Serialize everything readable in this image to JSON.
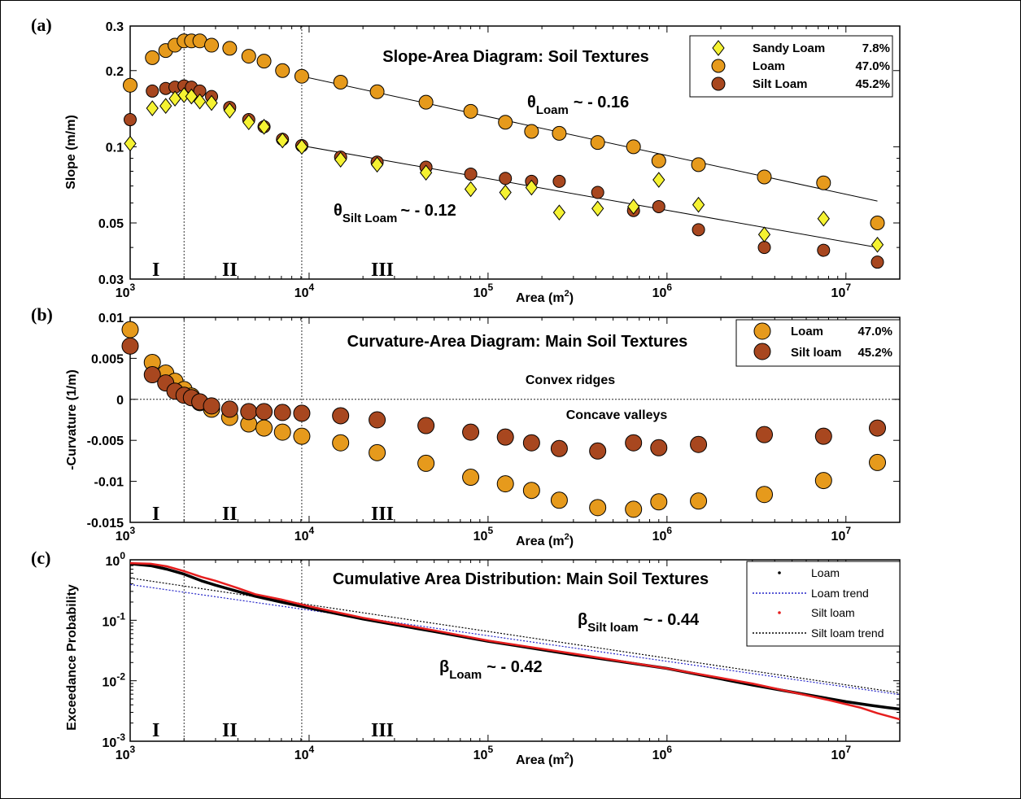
{
  "colors": {
    "sandy_loam": "#f5f232",
    "loam": "#e69a1c",
    "silt_loam": "#a8471f",
    "loam_line": "#000000",
    "loam_trend": "#2424c8",
    "silt_line": "#e61e1e",
    "silt_trend": "#000000"
  },
  "panels": {
    "a": {
      "label": "(a)"
    },
    "b": {
      "label": "(b)"
    },
    "c": {
      "label": "(c)"
    }
  },
  "regions": [
    "I",
    "II",
    "III"
  ],
  "x_tick_labels": [
    "10",
    "10",
    "10",
    "10",
    "10"
  ],
  "x_tick_exponents": [
    "3",
    "4",
    "5",
    "6",
    "7"
  ],
  "x_axis_label": {
    "main": "Area (m",
    "sup": "2",
    "close": ")"
  },
  "chart_data": [
    {
      "type": "scatter",
      "title": "Slope-Area Diagram: Soil Textures",
      "xlabel": "Area (m2)",
      "ylabel": "Slope (m/m)",
      "xscale": "log",
      "yscale": "log",
      "xlim": [
        1000,
        20000000
      ],
      "ylim": [
        0.03,
        0.3
      ],
      "y_tick_labels": [
        "0.03",
        "0.05",
        "0.1",
        "0.2",
        "0.3"
      ],
      "y_ticks": [
        0.03,
        0.05,
        0.1,
        0.2,
        0.3
      ],
      "legend_position": "top-right",
      "legend": [
        {
          "name": "Sandy Loam",
          "pct": "7.8%"
        },
        {
          "name": "Loam",
          "pct": "47.0%"
        },
        {
          "name": "Silt Loam",
          "pct": "45.2%"
        }
      ],
      "series": [
        {
          "name": "Sandy Loam",
          "marker": "diamond",
          "x": [
            1000,
            1330,
            1580,
            1780,
            2000,
            2200,
            2450,
            2850,
            3600,
            4600,
            5600,
            7100,
            9100,
            15000,
            24000,
            45000,
            80000,
            125000,
            175000,
            250000,
            410000,
            650000,
            900000,
            1500000,
            3500000,
            7500000,
            15000000
          ],
          "y": [
            0.103,
            0.142,
            0.145,
            0.155,
            0.16,
            0.158,
            0.151,
            0.149,
            0.139,
            0.125,
            0.12,
            0.106,
            0.1,
            0.089,
            0.085,
            0.079,
            0.068,
            0.066,
            0.069,
            0.055,
            0.057,
            0.058,
            0.074,
            0.059,
            0.045,
            0.052,
            0.041
          ]
        },
        {
          "name": "Loam",
          "marker": "circle",
          "x": [
            1000,
            1330,
            1580,
            1780,
            2000,
            2200,
            2450,
            2850,
            3600,
            4600,
            5600,
            7100,
            9100,
            15000,
            24000,
            45000,
            80000,
            125000,
            175000,
            250000,
            410000,
            650000,
            900000,
            1500000,
            3500000,
            7500000,
            15000000
          ],
          "y": [
            0.175,
            0.225,
            0.24,
            0.252,
            0.262,
            0.262,
            0.262,
            0.252,
            0.245,
            0.228,
            0.218,
            0.2,
            0.19,
            0.18,
            0.165,
            0.15,
            0.138,
            0.125,
            0.115,
            0.113,
            0.104,
            0.1,
            0.088,
            0.085,
            0.076,
            0.072,
            0.05
          ]
        },
        {
          "name": "Silt Loam",
          "marker": "circle",
          "x": [
            1000,
            1330,
            1580,
            1780,
            2000,
            2200,
            2450,
            2850,
            3600,
            4600,
            5600,
            7100,
            9100,
            15000,
            24000,
            45000,
            80000,
            125000,
            175000,
            250000,
            410000,
            650000,
            900000,
            1500000,
            3500000,
            7500000,
            15000000
          ],
          "y": [
            0.128,
            0.166,
            0.17,
            0.172,
            0.174,
            0.172,
            0.166,
            0.158,
            0.143,
            0.128,
            0.12,
            0.107,
            0.101,
            0.091,
            0.087,
            0.083,
            0.078,
            0.075,
            0.073,
            0.073,
            0.066,
            0.056,
            0.058,
            0.047,
            0.04,
            0.039,
            0.035
          ]
        }
      ],
      "trends": [
        {
          "name": "Loam",
          "x": [
            9100,
            15000000
          ],
          "y": [
            0.19,
            0.061
          ]
        },
        {
          "name": "Silt Loam",
          "x": [
            9100,
            15000000
          ],
          "y": [
            0.101,
            0.04
          ]
        }
      ],
      "annotations": [
        {
          "sym": "θ",
          "sub": "Loam",
          "text": "~ - 0.16"
        },
        {
          "sym": "θ",
          "sub": "Silt Loam",
          "text": "~ - 0.12"
        }
      ]
    },
    {
      "type": "scatter",
      "title": "Curvature-Area Diagram: Main Soil Textures",
      "xlabel": "Area (m2)",
      "ylabel": "-Curvature (1/m)",
      "xscale": "log",
      "yscale": "linear",
      "xlim": [
        1000,
        20000000
      ],
      "ylim": [
        -0.015,
        0.01
      ],
      "y_tick_labels": [
        "0.01",
        "0.005",
        "0",
        "-0.005",
        "-0.01",
        "-0.015"
      ],
      "y_ticks": [
        0.01,
        0.005,
        0,
        -0.005,
        -0.01,
        -0.015
      ],
      "legend_position": "top-right",
      "legend": [
        {
          "name": "Loam",
          "pct": "47.0%"
        },
        {
          "name": "Silt loam",
          "pct": "45.2%"
        }
      ],
      "region_labels": {
        "upper": "Convex ridges",
        "lower": "Concave valleys"
      },
      "series": [
        {
          "name": "Loam",
          "marker": "circle",
          "x": [
            1000,
            1330,
            1580,
            1780,
            2000,
            2200,
            2450,
            2850,
            3600,
            4600,
            5600,
            7100,
            9100,
            15000,
            24000,
            45000,
            80000,
            125000,
            175000,
            250000,
            410000,
            650000,
            900000,
            1500000,
            3500000,
            7500000,
            15000000
          ],
          "y": [
            0.0085,
            0.0045,
            0.0032,
            0.0022,
            0.0012,
            0.0004,
            -0.0004,
            -0.0012,
            -0.0022,
            -0.003,
            -0.0035,
            -0.004,
            -0.0045,
            -0.0053,
            -0.0065,
            -0.0078,
            -0.0095,
            -0.0103,
            -0.0111,
            -0.0123,
            -0.0132,
            -0.0134,
            -0.0125,
            -0.0124,
            -0.0116,
            -0.0099,
            -0.0077
          ]
        },
        {
          "name": "Silt loam",
          "marker": "circle",
          "x": [
            1000,
            1330,
            1580,
            1780,
            2000,
            2200,
            2450,
            2850,
            3600,
            4600,
            5600,
            7100,
            9100,
            15000,
            24000,
            45000,
            80000,
            125000,
            175000,
            250000,
            410000,
            650000,
            900000,
            1500000,
            3500000,
            7500000,
            15000000
          ],
          "y": [
            0.0065,
            0.003,
            0.002,
            0.001,
            0.0005,
            0.0002,
            -0.0003,
            -0.0008,
            -0.0012,
            -0.0015,
            -0.0015,
            -0.0016,
            -0.0017,
            -0.002,
            -0.0025,
            -0.0032,
            -0.004,
            -0.0046,
            -0.0053,
            -0.006,
            -0.0063,
            -0.0053,
            -0.0059,
            -0.0055,
            -0.0043,
            -0.0045,
            -0.0035
          ]
        }
      ]
    },
    {
      "type": "line",
      "title": "Cumulative Area Distribution: Main Soil Textures",
      "xlabel": "Area (m2)",
      "ylabel": "Exceedance Probability",
      "xscale": "log",
      "yscale": "log",
      "xlim": [
        1000,
        20000000
      ],
      "ylim": [
        0.001,
        1
      ],
      "y_tick_labels": [
        "10",
        "10",
        "10",
        "10"
      ],
      "y_tick_exponents": [
        "0",
        "-1",
        "-2",
        "-3"
      ],
      "y_ticks": [
        1,
        0.1,
        0.01,
        0.001
      ],
      "legend_position": "top-right",
      "legend": [
        {
          "name": "Loam",
          "style": "dot"
        },
        {
          "name": "Loam trend",
          "style": "dashed"
        },
        {
          "name": "Silt loam",
          "style": "dot"
        },
        {
          "name": "Silt loam trend",
          "style": "dashed"
        }
      ],
      "series": [
        {
          "name": "Loam",
          "x": [
            1000,
            1300,
            1600,
            2000,
            2500,
            3000,
            4000,
            5000,
            7000,
            10000,
            20000,
            50000,
            100000,
            300000,
            1000000,
            3000000,
            10000000,
            14000000,
            17000000,
            20000000
          ],
          "y": [
            0.86,
            0.8,
            0.7,
            0.58,
            0.45,
            0.38,
            0.3,
            0.25,
            0.2,
            0.16,
            0.105,
            0.065,
            0.045,
            0.027,
            0.016,
            0.0085,
            0.0045,
            0.0039,
            0.0036,
            0.0034
          ]
        },
        {
          "name": "Silt loam",
          "x": [
            1000,
            1300,
            1600,
            2000,
            2500,
            3000,
            4000,
            5000,
            7000,
            10000,
            20000,
            50000,
            100000,
            300000,
            1000000,
            3000000,
            8000000,
            12000000,
            15000000,
            20000000
          ],
          "y": [
            0.88,
            0.86,
            0.78,
            0.65,
            0.52,
            0.45,
            0.34,
            0.27,
            0.22,
            0.17,
            0.11,
            0.068,
            0.046,
            0.028,
            0.016,
            0.009,
            0.0048,
            0.0036,
            0.0029,
            0.0023
          ]
        },
        {
          "name": "Loam trend",
          "x": [
            1000,
            20000000
          ],
          "y": [
            0.39,
            0.0059
          ]
        },
        {
          "name": "Silt loam trend",
          "x": [
            1000,
            20000000
          ],
          "y": [
            0.5,
            0.0063
          ]
        }
      ],
      "annotations": [
        {
          "sym": "β",
          "sub": "Silt loam",
          "text": "~ - 0.44"
        },
        {
          "sym": "β",
          "sub": "Loam",
          "text": "~ - 0.42"
        }
      ]
    }
  ]
}
